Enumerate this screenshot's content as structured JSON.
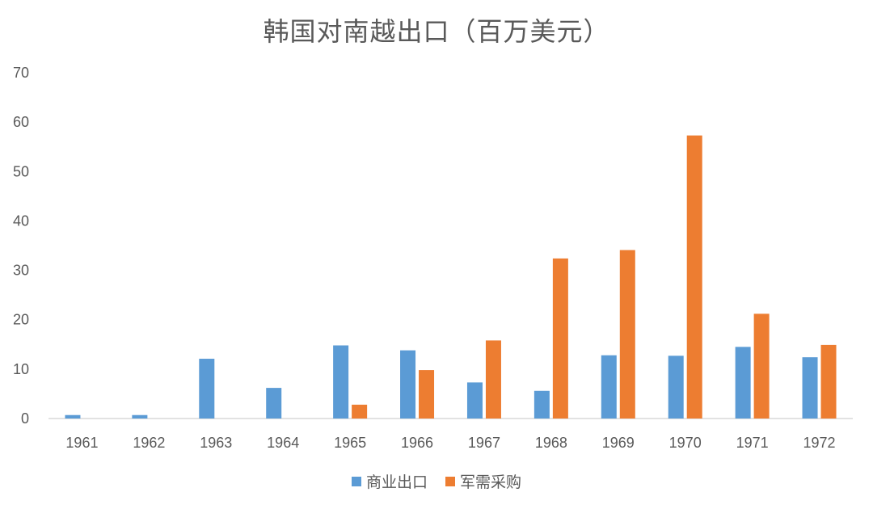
{
  "chart_data": {
    "type": "bar",
    "title": "韩国对南越出口（百万美元）",
    "categories": [
      "1961",
      "1962",
      "1963",
      "1964",
      "1965",
      "1966",
      "1967",
      "1968",
      "1969",
      "1970",
      "1971",
      "1972"
    ],
    "series": [
      {
        "name": "商业出口",
        "color": "#5B9BD5",
        "values": [
          0.7,
          0.7,
          12.1,
          6.2,
          14.8,
          13.8,
          7.3,
          5.6,
          12.8,
          12.7,
          14.5,
          12.4
        ]
      },
      {
        "name": "军需采购",
        "color": "#ED7D31",
        "values": [
          0,
          0,
          0,
          0,
          2.8,
          9.8,
          15.8,
          32.4,
          34.1,
          57.3,
          21.2,
          14.9
        ]
      }
    ],
    "ylim": [
      0,
      70
    ],
    "yticks": [
      0,
      10,
      20,
      30,
      40,
      50,
      60,
      70
    ],
    "grid": false,
    "legend_position": "bottom"
  }
}
